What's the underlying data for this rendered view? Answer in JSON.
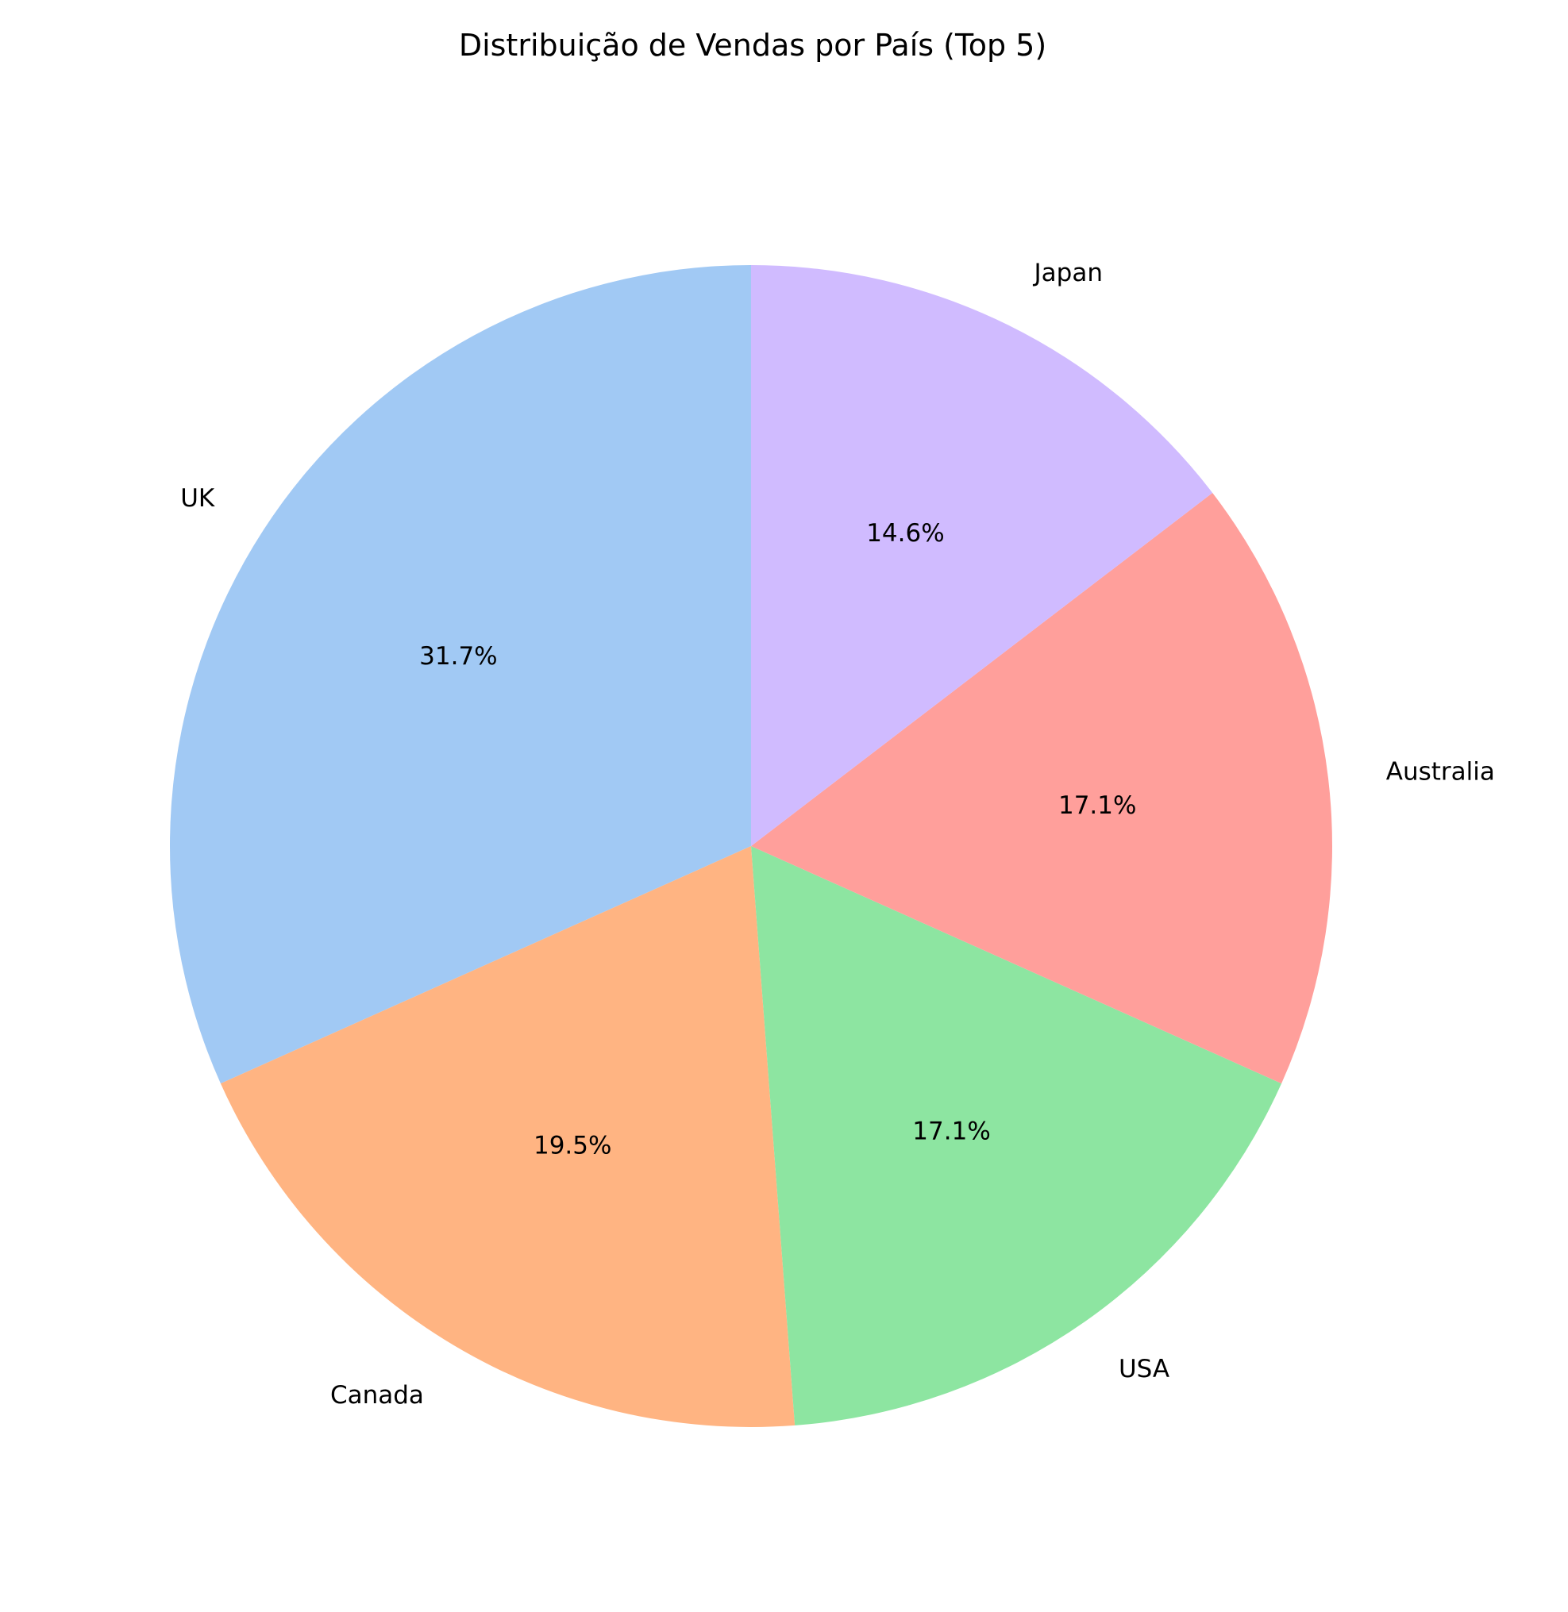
{
  "chart_data": {
    "type": "pie",
    "title": "Distribuição de Vendas por País (Top 5)",
    "start_angle_deg": 90,
    "direction": "counterclockwise",
    "slices": [
      {
        "label": "UK",
        "value": 31.7,
        "pct_label": "31.7%",
        "color": "#a1c9f4"
      },
      {
        "label": "Canada",
        "value": 19.5,
        "pct_label": "19.5%",
        "color": "#ffb482"
      },
      {
        "label": "USA",
        "value": 17.1,
        "pct_label": "17.1%",
        "color": "#8de5a1"
      },
      {
        "label": "Australia",
        "value": 17.1,
        "pct_label": "17.1%",
        "color": "#ff9f9b"
      },
      {
        "label": "Japan",
        "value": 14.6,
        "pct_label": "14.6%",
        "color": "#d0bbff"
      }
    ]
  }
}
